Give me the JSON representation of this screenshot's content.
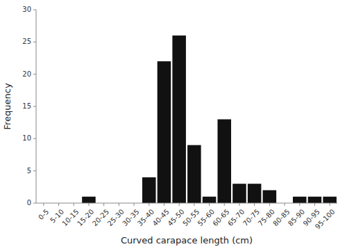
{
  "chart_data": {
    "type": "bar",
    "xlabel": "Curved carapace length (cm)",
    "ylabel": "Frequency",
    "categories": [
      "0-5",
      "5-10",
      "10-15",
      "15-20",
      "20-25",
      "25-30",
      "30-35",
      "35-40",
      "40-45",
      "45-50",
      "50-55",
      "55-60",
      "60-65",
      "65-70",
      "70-75",
      "75-80",
      "80-85",
      "85-90",
      "90-95",
      "95-100"
    ],
    "values": [
      0,
      0,
      0,
      1,
      0,
      0,
      0,
      4,
      22,
      26,
      9,
      1,
      13,
      3,
      3,
      2,
      0,
      1,
      1,
      1
    ],
    "color": "#111111",
    "ylim": [
      0,
      30
    ],
    "yticks": [
      0,
      5,
      10,
      15,
      20,
      25,
      30
    ],
    "grid": false
  }
}
